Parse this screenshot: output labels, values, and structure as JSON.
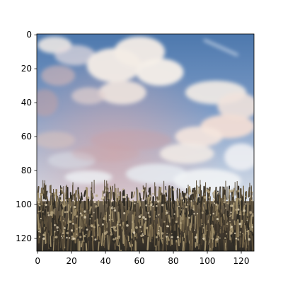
{
  "chart_data": {
    "type": "image",
    "image_shape": [
      128,
      128
    ],
    "xlim": [
      -0.5,
      127.5
    ],
    "ylim": [
      127.5,
      -0.5
    ],
    "y_axis_inverted": true,
    "x_ticks": [
      0,
      20,
      40,
      60,
      80,
      100,
      120
    ],
    "y_ticks": [
      0,
      20,
      40,
      60,
      80,
      100,
      120
    ],
    "x_tick_labels": [
      "0",
      "20",
      "40",
      "60",
      "80",
      "100",
      "120"
    ],
    "y_tick_labels": [
      "0",
      "20",
      "40",
      "60",
      "80",
      "100",
      "120"
    ],
    "title": "",
    "xlabel": "",
    "ylabel": "",
    "grid": false,
    "image_content": {
      "sky_colors": [
        "#4a73a8",
        "#7f9cc6",
        "#c9d4e3",
        "#f0e6e0"
      ],
      "cloud_color": "#f3ece6",
      "cloud_shadow": "#d7c3be",
      "sunset_tint": "#c8a2a8",
      "grass_colors": [
        "#3a3328",
        "#5a4e3a",
        "#7a6a4c",
        "#9e8e6a",
        "#2e2b24"
      ],
      "horizon_row": 95
    }
  }
}
